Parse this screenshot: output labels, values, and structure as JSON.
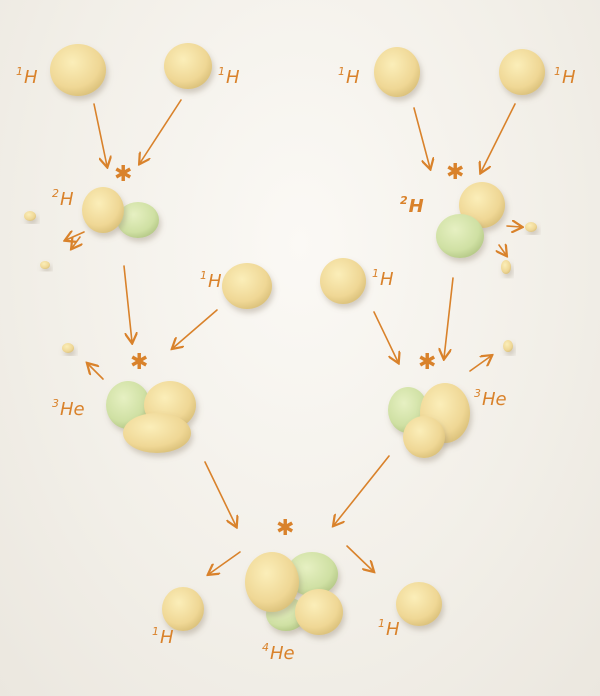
{
  "labels": {
    "h1_top_a": {
      "mass": "1",
      "symbol": "H"
    },
    "h1_top_b": {
      "mass": "1",
      "symbol": "H"
    },
    "h1_top_c": {
      "mass": "1",
      "symbol": "H"
    },
    "h1_top_d": {
      "mass": "1",
      "symbol": "H"
    },
    "h2_left": {
      "mass": "2",
      "symbol": "H"
    },
    "h2_right": {
      "mass": "2",
      "symbol": "H"
    },
    "h1_mid_left": {
      "mass": "1",
      "symbol": "H"
    },
    "h1_mid_right": {
      "mass": "1",
      "symbol": "H"
    },
    "he3_left": {
      "mass": "3",
      "symbol": "He"
    },
    "he3_right": {
      "mass": "3",
      "symbol": "He"
    },
    "h1_bottom_left": {
      "mass": "1",
      "symbol": "H"
    },
    "h1_bottom_right": {
      "mass": "1",
      "symbol": "H"
    },
    "he4": {
      "mass": "4",
      "symbol": "He"
    },
    "star_glyph": "✱"
  },
  "colors": {
    "proton": "#f0d98f",
    "neutron": "#cfe0a3",
    "ink": "#d9822b",
    "paper": "#f3f0ea"
  }
}
